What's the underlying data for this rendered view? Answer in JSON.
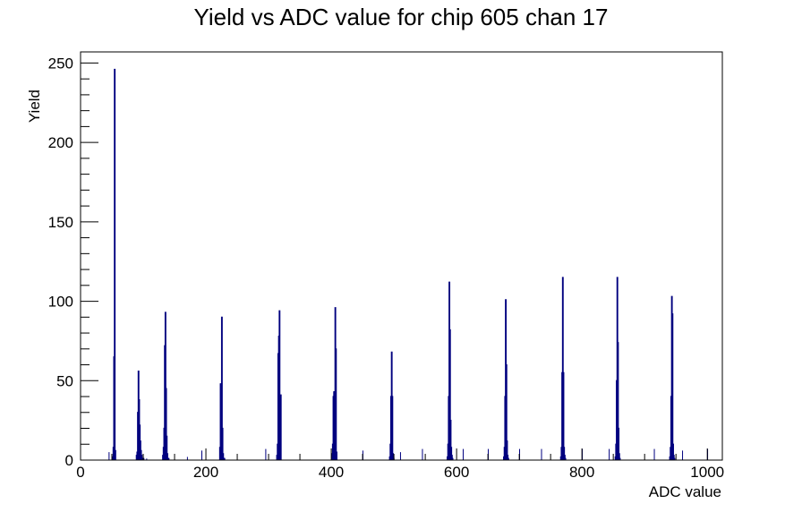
{
  "chart_data": {
    "type": "bar",
    "title": "Yield vs ADC value for chip 605 chan 17",
    "xlabel": "ADC value",
    "ylabel": "Yield",
    "xlim": [
      0,
      1024
    ],
    "ylim": [
      0,
      257
    ],
    "x_ticks": [
      0,
      200,
      400,
      600,
      800,
      1000
    ],
    "y_ticks": [
      0,
      50,
      100,
      150,
      200,
      250
    ],
    "grid": false,
    "legend": "none",
    "color": "#00007f",
    "series": [
      {
        "x": [
          51,
          52,
          53,
          54,
          55,
          89,
          90,
          91,
          92,
          93,
          94,
          95,
          96,
          97,
          98,
          99,
          100,
          131,
          132,
          133,
          134,
          135,
          136,
          137,
          138,
          139,
          140,
          222,
          223,
          224,
          225,
          226,
          227,
          228,
          229,
          313,
          314,
          315,
          316,
          317,
          318,
          319,
          401,
          402,
          403,
          404,
          405,
          406,
          407,
          408,
          493,
          494,
          495,
          496,
          497,
          498,
          499,
          585,
          586,
          587,
          588,
          589,
          590,
          591,
          592,
          593,
          675,
          676,
          677,
          678,
          679,
          680,
          681,
          682,
          766,
          767,
          768,
          769,
          770,
          771,
          772,
          773,
          853,
          854,
          855,
          856,
          857,
          858,
          859,
          860,
          940,
          941,
          942,
          943,
          944,
          945,
          946,
          947
        ],
        "values": [
          2,
          8,
          65,
          246,
          6,
          3,
          5,
          30,
          56,
          38,
          22,
          12,
          6,
          3,
          1,
          1,
          1,
          3,
          8,
          20,
          72,
          93,
          45,
          15,
          4,
          1,
          1,
          8,
          48,
          48,
          90,
          20,
          4,
          1,
          1,
          3,
          10,
          67,
          78,
          94,
          4,
          41,
          4,
          10,
          40,
          43,
          43,
          96,
          70,
          5,
          2,
          10,
          40,
          68,
          40,
          4,
          1,
          2,
          10,
          40,
          112,
          82,
          25,
          8,
          3,
          1,
          2,
          8,
          40,
          101,
          60,
          12,
          3,
          1,
          2,
          8,
          55,
          115,
          55,
          8,
          3,
          1,
          2,
          10,
          50,
          115,
          74,
          20,
          4,
          1,
          2,
          8,
          40,
          103,
          92,
          10,
          3,
          1
        ]
      }
    ],
    "isolated_counts": {
      "x": [
        45,
        105,
        170,
        193,
        295,
        450,
        510,
        545,
        610,
        650,
        700,
        735,
        800,
        843,
        915,
        960,
        1000
      ],
      "values": [
        5,
        1,
        2,
        6,
        7,
        6,
        5,
        7,
        7,
        7,
        7,
        7,
        7,
        7,
        7,
        6,
        7
      ]
    }
  }
}
